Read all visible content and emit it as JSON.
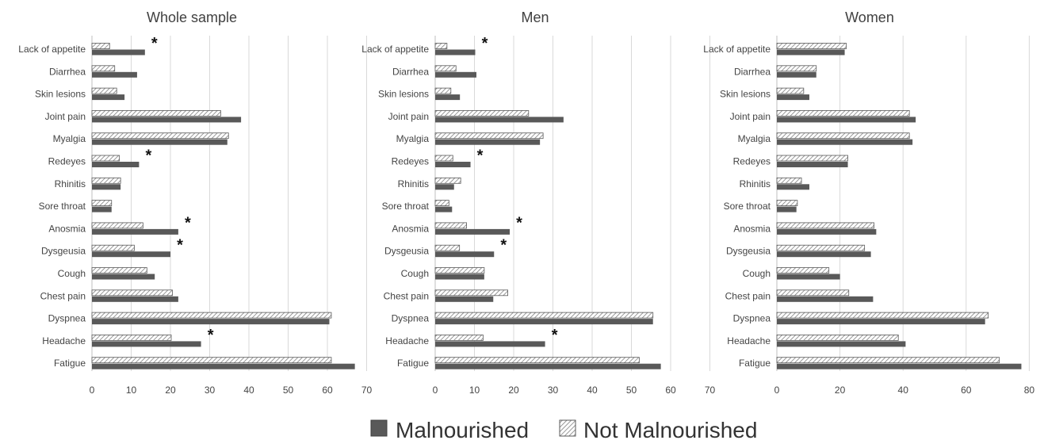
{
  "chart_data": [
    {
      "type": "bar",
      "orientation": "horizontal",
      "title": "Whole sample",
      "categories": [
        "Lack of appetite",
        "Diarrhea",
        "Skin lesions",
        "Joint pain",
        "Myalgia",
        "Redeyes",
        "Rhinitis",
        "Sore throat",
        "Anosmia",
        "Dysgeusia",
        "Cough",
        "Chest pain",
        "Dyspnea",
        "Headache",
        "Fatigue"
      ],
      "series": [
        {
          "name": "Malnourished",
          "values": [
            13.5,
            11.5,
            8.3,
            38.0,
            34.5,
            12.0,
            7.3,
            5.0,
            22.0,
            20.0,
            16.0,
            22.0,
            60.5,
            27.8,
            67.0
          ]
        },
        {
          "name": "Not Malnourished",
          "values": [
            4.5,
            5.8,
            6.3,
            32.8,
            34.8,
            7.0,
            7.3,
            5.0,
            13.0,
            10.8,
            14.0,
            20.5,
            61.0,
            20.2,
            61.0
          ]
        }
      ],
      "significant": [
        true,
        false,
        false,
        false,
        false,
        true,
        false,
        false,
        true,
        true,
        false,
        false,
        false,
        true,
        false
      ],
      "xlim": [
        0,
        70
      ],
      "xticks": [
        0,
        10,
        20,
        30,
        40,
        50,
        60,
        70
      ],
      "grid": true
    },
    {
      "type": "bar",
      "orientation": "horizontal",
      "title": "Men",
      "categories": [
        "Lack of appetite",
        "Diarrhea",
        "Skin lesions",
        "Joint pain",
        "Myalgia",
        "Redeyes",
        "Rhinitis",
        "Sore throat",
        "Anosmia",
        "Dysgeusia",
        "Cough",
        "Chest pain",
        "Dyspnea",
        "Headache",
        "Fatigue"
      ],
      "series": [
        {
          "name": "Malnourished",
          "values": [
            10.2,
            10.5,
            6.3,
            32.7,
            26.7,
            9.0,
            4.8,
            4.3,
            19.0,
            15.0,
            12.5,
            14.8,
            55.5,
            28.0,
            57.5
          ]
        },
        {
          "name": "Not Malnourished",
          "values": [
            3.0,
            5.3,
            4.0,
            23.8,
            27.5,
            4.5,
            6.5,
            3.5,
            8.0,
            6.2,
            12.5,
            18.5,
            55.5,
            12.2,
            52.0
          ]
        }
      ],
      "significant": [
        true,
        false,
        false,
        false,
        false,
        true,
        false,
        false,
        true,
        true,
        false,
        false,
        false,
        true,
        false
      ],
      "xlim": [
        0,
        60
      ],
      "xticks": [
        0,
        10,
        20,
        30,
        40,
        50,
        60,
        70
      ],
      "grid": true
    },
    {
      "type": "bar",
      "orientation": "horizontal",
      "title": "Women",
      "categories": [
        "Lack of appetite",
        "Diarrhea",
        "Skin lesions",
        "Joint pain",
        "Myalgia",
        "Redeyes",
        "Rhinitis",
        "Sore throat",
        "Anosmia",
        "Dysgeusia",
        "Cough",
        "Chest pain",
        "Dyspnea",
        "Headache",
        "Fatigue"
      ],
      "series": [
        {
          "name": "Malnourished",
          "values": [
            21.5,
            12.5,
            10.3,
            44.0,
            43.0,
            22.5,
            10.3,
            6.2,
            31.5,
            29.8,
            20.0,
            30.5,
            66.0,
            40.8,
            77.5
          ]
        },
        {
          "name": "Not Malnourished",
          "values": [
            22.0,
            12.5,
            8.5,
            42.0,
            42.0,
            22.5,
            7.8,
            6.5,
            30.8,
            27.8,
            16.5,
            22.8,
            67.0,
            38.5,
            70.5
          ]
        }
      ],
      "significant": [
        false,
        false,
        false,
        false,
        false,
        false,
        false,
        false,
        false,
        false,
        false,
        false,
        false,
        false,
        false
      ],
      "xlim": [
        0,
        80
      ],
      "xticks": [
        0,
        20,
        40,
        60,
        80
      ],
      "grid": true
    }
  ],
  "legend": {
    "position": "bottom",
    "items": [
      {
        "label": "Malnourished",
        "color": "#595959"
      },
      {
        "label": "Not Malnourished",
        "pattern": "hatch"
      }
    ]
  },
  "significance_marker": "*",
  "colors": {
    "malnourished": "#595959",
    "hatch": "#7f7f7f",
    "grid": "#d9d9d9"
  }
}
